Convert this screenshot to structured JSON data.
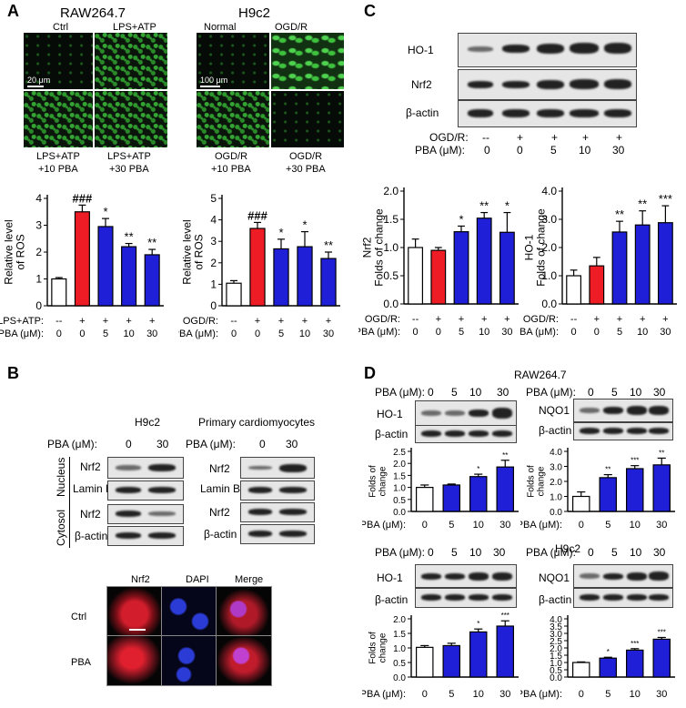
{
  "panel_labels": {
    "A": "A",
    "B": "B",
    "C": "C",
    "D": "D"
  },
  "panelA": {
    "raw_title": "RAW264.7",
    "raw_labels": {
      "ctrl": "Ctrl",
      "lps": "LPS+ATP",
      "lps10_a": "LPS+ATP",
      "lps10_b": "+10 PBA",
      "lps30_a": "LPS+ATP",
      "lps30_b": "+30 PBA"
    },
    "raw_scale": "20 μm",
    "h9_title": "H9c2",
    "h9_labels": {
      "normal": "Normal",
      "ogd": "OGD/R",
      "ogd10_a": "OGD/R",
      "ogd10_b": "+10 PBA",
      "ogd30_a": "OGD/R",
      "ogd30_b": "+30 PBA"
    },
    "h9_scale": "100 μm"
  },
  "panelB": {
    "h9_title": "H9c2",
    "prim_title": "Primary cardiomyocytes",
    "pba_label": "PBA (μM):",
    "pba_values": [
      "0",
      "30"
    ],
    "rows": [
      "Nrf2",
      "Lamin B",
      "Nrf2",
      "β-actin"
    ],
    "nucleus": "Nucleus",
    "cytosol": "Cytosol",
    "if_headers": [
      "Nrf2",
      "DAPI",
      "Merge"
    ],
    "if_rows": [
      "Ctrl",
      "PBA"
    ]
  },
  "panelC": {
    "rows": [
      "HO-1",
      "Nrf2",
      "β-actin"
    ],
    "ogd_label": "OGD/R:",
    "ogd_values": [
      "--",
      "+",
      "+",
      "+",
      "+"
    ],
    "pba_label": "PBA (μM):",
    "pba_values": [
      "0",
      "0",
      "5",
      "10",
      "30"
    ]
  },
  "panelD": {
    "raw_title": "RAW264.7",
    "h9_title": "H9c2",
    "pba_label": "PBA (μM):",
    "pba_values": [
      "0",
      "5",
      "10",
      "30"
    ],
    "ho1": "HO-1",
    "nqo1": "NQO1",
    "actin": "β-actin"
  },
  "colors": {
    "control": "#ffffff",
    "model": "#ee1c24",
    "treat": "#1f1fd8"
  },
  "chart_data": [
    {
      "id": "A1",
      "type": "bar",
      "ylabel": "Relative level of ROS",
      "ylim": [
        0,
        4
      ],
      "yticks": [
        0,
        1,
        2,
        3,
        4
      ],
      "values": [
        1.0,
        3.5,
        2.95,
        2.2,
        1.9
      ],
      "errors": [
        0.05,
        0.25,
        0.3,
        0.12,
        0.2
      ],
      "stars": [
        "",
        "###",
        "*",
        "**",
        "**"
      ],
      "row_labels": [
        "LPS+ATP:",
        "PBA (μM):"
      ],
      "cond": [
        "--",
        "+",
        "+",
        "+",
        "+"
      ],
      "pba": [
        "0",
        "0",
        "5",
        "10",
        "30"
      ]
    },
    {
      "id": "A2",
      "type": "bar",
      "ylabel": "Relative level of ROS",
      "ylim": [
        0,
        5
      ],
      "yticks": [
        0,
        1,
        2,
        3,
        4,
        5
      ],
      "values": [
        1.05,
        3.6,
        2.65,
        2.75,
        2.2
      ],
      "errors": [
        0.12,
        0.28,
        0.45,
        0.7,
        0.3
      ],
      "stars": [
        "",
        "###",
        "*",
        "*",
        "**"
      ],
      "row_labels": [
        "OGD/R:",
        "PBA (μM):"
      ],
      "cond": [
        "--",
        "+",
        "+",
        "+",
        "+"
      ],
      "pba": [
        "0",
        "0",
        "5",
        "10",
        "30"
      ]
    },
    {
      "id": "C1",
      "type": "bar",
      "ylabel": "Nrf2 Folds of change",
      "ylim": [
        0,
        2.0
      ],
      "yticks": [
        0.0,
        0.5,
        1.0,
        1.5,
        2.0
      ],
      "values": [
        1.0,
        0.95,
        1.28,
        1.52,
        1.27
      ],
      "errors": [
        0.15,
        0.05,
        0.1,
        0.1,
        0.35
      ],
      "stars": [
        "",
        "",
        "*",
        "**",
        "*"
      ],
      "row_labels": [
        "OGD/R:",
        "PBA (μM):"
      ],
      "cond": [
        "--",
        "+",
        "+",
        "+",
        "+"
      ],
      "pba": [
        "0",
        "0",
        "5",
        "10",
        "30"
      ]
    },
    {
      "id": "C2",
      "type": "bar",
      "ylabel": "HO-1 Folds of change",
      "ylim": [
        0,
        4.0
      ],
      "yticks": [
        0.0,
        1.0,
        2.0,
        3.0,
        4.0
      ],
      "values": [
        1.0,
        1.35,
        2.55,
        2.8,
        2.88
      ],
      "errors": [
        0.2,
        0.3,
        0.38,
        0.5,
        0.6
      ],
      "stars": [
        "",
        "",
        "**",
        "**",
        "***"
      ],
      "row_labels": [
        "OGD/R:",
        "PBA (μM):"
      ],
      "cond": [
        "--",
        "+",
        "+",
        "+",
        "+"
      ],
      "pba": [
        "0",
        "0",
        "5",
        "10",
        "30"
      ]
    },
    {
      "id": "D1",
      "type": "bar",
      "ylabel": "Folds of change",
      "ylim": [
        0,
        2.5
      ],
      "yticks": [
        0.0,
        0.5,
        1.0,
        1.5,
        2.0,
        2.5
      ],
      "values": [
        1.0,
        1.1,
        1.45,
        1.85
      ],
      "errors": [
        0.1,
        0.04,
        0.1,
        0.28
      ],
      "stars": [
        "",
        "",
        "*",
        "**"
      ],
      "pba": [
        "0",
        "5",
        "10",
        "30"
      ]
    },
    {
      "id": "D2",
      "type": "bar",
      "ylabel": "Folds of change",
      "ylim": [
        0,
        4.0
      ],
      "yticks": [
        0.0,
        1.0,
        2.0,
        3.0,
        4.0
      ],
      "values": [
        1.0,
        2.25,
        2.85,
        3.1
      ],
      "errors": [
        0.3,
        0.2,
        0.2,
        0.45
      ],
      "stars": [
        "",
        "**",
        "***",
        "**"
      ],
      "pba": [
        "0",
        "5",
        "10",
        "30"
      ]
    },
    {
      "id": "D3",
      "type": "bar",
      "ylabel": "Folds of change",
      "ylim": [
        0,
        2.0
      ],
      "yticks": [
        0.0,
        0.5,
        1.0,
        1.5,
        2.0
      ],
      "values": [
        1.02,
        1.08,
        1.55,
        1.75
      ],
      "errors": [
        0.06,
        0.08,
        0.1,
        0.18
      ],
      "stars": [
        "",
        "",
        "*",
        "***"
      ],
      "pba": [
        "0",
        "5",
        "10",
        "30"
      ]
    },
    {
      "id": "D4",
      "type": "bar",
      "ylabel": "",
      "ylim": [
        0,
        4.0
      ],
      "yticks": [
        0.0,
        0.5,
        1.0,
        1.5,
        2.0,
        2.5,
        3.0,
        3.5,
        4.0
      ],
      "values": [
        1.0,
        1.3,
        1.85,
        2.6
      ],
      "errors": [
        0.04,
        0.06,
        0.1,
        0.12
      ],
      "stars": [
        "",
        "*",
        "***",
        "***"
      ],
      "pba": [
        "0",
        "5",
        "10",
        "30"
      ]
    }
  ]
}
